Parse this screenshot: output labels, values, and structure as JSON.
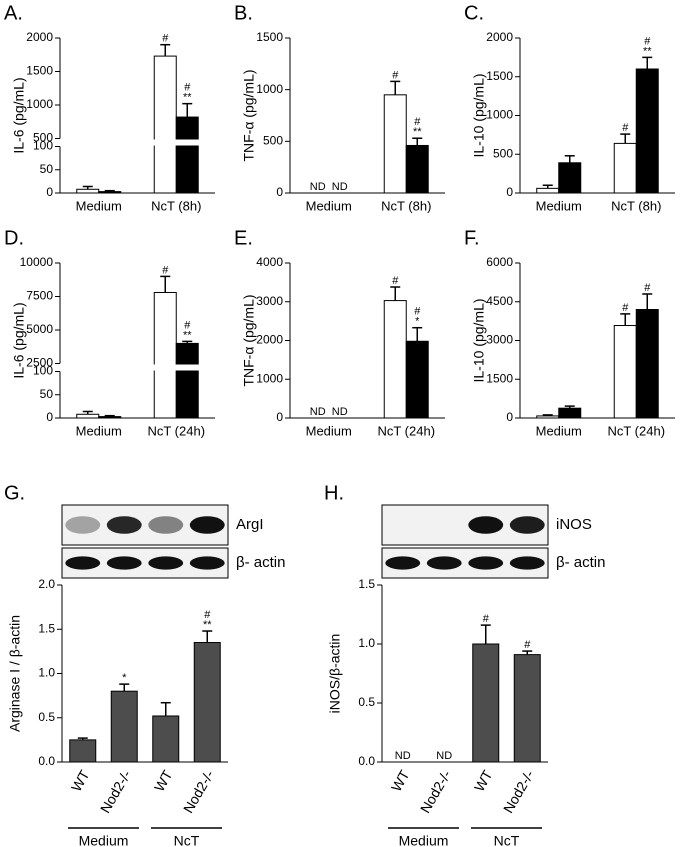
{
  "chart_data": [
    {
      "type": "bar",
      "title": "A.",
      "y_label": "IL-6 (pg/mL)",
      "categories": [
        "Medium",
        "NcT (8h)"
      ],
      "series": [
        {
          "color": "#ffffff",
          "values": [
            8,
            1730
          ],
          "errors": [
            6,
            170
          ],
          "annotations": [
            null,
            [
              "#"
            ]
          ]
        },
        {
          "color": "#000000",
          "values": [
            3,
            820
          ],
          "errors": [
            2,
            200
          ],
          "annotations": [
            null,
            [
              "#",
              "**"
            ]
          ]
        }
      ],
      "ylim": [
        0,
        2000
      ],
      "ybreak": [
        100,
        500
      ],
      "yticks": [
        0,
        50,
        100,
        500,
        1000,
        1500,
        2000
      ]
    },
    {
      "type": "bar",
      "title": "B.",
      "y_label": "TNF-α (pg/mL)",
      "categories": [
        "Medium",
        "NcT (8h)"
      ],
      "series": [
        {
          "color": "#ffffff",
          "values": [
            null,
            950
          ],
          "errors": [
            null,
            130
          ],
          "annotations": [
            [
              "ND"
            ],
            [
              "#"
            ]
          ]
        },
        {
          "color": "#000000",
          "values": [
            null,
            460
          ],
          "errors": [
            null,
            70
          ],
          "annotations": [
            [
              "ND"
            ],
            [
              "#",
              "**"
            ]
          ]
        }
      ],
      "ylim": [
        0,
        1500
      ],
      "yticks": [
        0,
        500,
        1000,
        1500
      ]
    },
    {
      "type": "bar",
      "title": "C.",
      "y_label": "IL-10 (pg/mL)",
      "categories": [
        "Medium",
        "NcT (8h)"
      ],
      "series": [
        {
          "color": "#ffffff",
          "values": [
            60,
            640
          ],
          "errors": [
            40,
            120
          ],
          "annotations": [
            null,
            [
              "#"
            ]
          ]
        },
        {
          "color": "#000000",
          "values": [
            390,
            1600
          ],
          "errors": [
            90,
            150
          ],
          "annotations": [
            null,
            [
              "#",
              "**"
            ]
          ]
        }
      ],
      "ylim": [
        0,
        2000
      ],
      "yticks": [
        0,
        500,
        1000,
        1500,
        2000
      ]
    },
    {
      "type": "bar",
      "title": "D.",
      "y_label": "IL-6 (pg/mL)",
      "categories": [
        "Medium",
        "NcT (24h)"
      ],
      "series": [
        {
          "color": "#ffffff",
          "values": [
            8,
            7800
          ],
          "errors": [
            6,
            1200
          ],
          "annotations": [
            null,
            [
              "#"
            ]
          ]
        },
        {
          "color": "#000000",
          "values": [
            3,
            4000
          ],
          "errors": [
            2,
            150
          ],
          "annotations": [
            null,
            [
              "#",
              "**"
            ]
          ]
        }
      ],
      "ylim": [
        0,
        10000
      ],
      "ybreak": [
        100,
        2500
      ],
      "yticks": [
        0,
        50,
        100,
        2500,
        5000,
        7500,
        10000
      ]
    },
    {
      "type": "bar",
      "title": "E.",
      "y_label": "TNF-α (pg/mL)",
      "categories": [
        "Medium",
        "NcT (24h)"
      ],
      "series": [
        {
          "color": "#ffffff",
          "values": [
            null,
            3030
          ],
          "errors": [
            null,
            350
          ],
          "annotations": [
            [
              "ND"
            ],
            [
              "#"
            ]
          ]
        },
        {
          "color": "#000000",
          "values": [
            null,
            1980
          ],
          "errors": [
            null,
            350
          ],
          "annotations": [
            [
              "ND"
            ],
            [
              "#",
              "*"
            ]
          ]
        }
      ],
      "ylim": [
        0,
        4000
      ],
      "yticks": [
        0,
        1000,
        2000,
        3000,
        4000
      ]
    },
    {
      "type": "bar",
      "title": "F.",
      "y_label": "IL-10 (pg/mL)",
      "categories": [
        "Medium",
        "NcT (24h)"
      ],
      "series": [
        {
          "color": "#ffffff",
          "values": [
            80,
            3580
          ],
          "errors": [
            40,
            450
          ],
          "annotations": [
            null,
            [
              "#"
            ]
          ]
        },
        {
          "color": "#000000",
          "values": [
            380,
            4200
          ],
          "errors": [
            80,
            600
          ],
          "annotations": [
            null,
            [
              "#"
            ]
          ]
        }
      ],
      "ylim": [
        0,
        6000
      ],
      "yticks": [
        0,
        1500,
        3000,
        4500,
        6000
      ]
    },
    {
      "type": "bar",
      "title": "G.",
      "y_label": "Arginase I / β-actin",
      "blot_labels": [
        "ArgI",
        "β- actin"
      ],
      "categories": [
        "WT",
        "Nod2-/-",
        "WT",
        "Nod2-/-"
      ],
      "groups": [
        "Medium",
        "NcT"
      ],
      "series": [
        {
          "color": "#4d4d4d",
          "values": [
            0.25,
            0.8,
            0.52,
            1.35
          ],
          "errors": [
            0.02,
            0.08,
            0.15,
            0.13
          ],
          "annotations": [
            null,
            [
              "*"
            ],
            null,
            [
              "#",
              "**"
            ]
          ]
        }
      ],
      "ylim": [
        0,
        2.0
      ],
      "yticks": [
        {
          "value": 0,
          "label": "0.0"
        },
        0.5,
        {
          "value": 1,
          "label": "1.0"
        },
        1.5,
        {
          "value": 2,
          "label": "2.0"
        }
      ]
    },
    {
      "type": "bar",
      "title": "H.",
      "y_label": "iNOS/β-actin",
      "blot_labels": [
        "iNOS",
        "β- actin"
      ],
      "categories": [
        "WT",
        "Nod2-/-",
        "WT",
        "Nod2-/-"
      ],
      "groups": [
        "Medium",
        "NcT"
      ],
      "series": [
        {
          "color": "#4d4d4d",
          "values": [
            null,
            null,
            1.0,
            0.91
          ],
          "errors": [
            null,
            null,
            0.16,
            0.03
          ],
          "annotations": [
            [
              "ND"
            ],
            [
              "ND"
            ],
            [
              "#"
            ],
            [
              "#"
            ]
          ]
        }
      ],
      "ylim": [
        0,
        1.5
      ],
      "yticks": [
        {
          "value": 0,
          "label": "0.0"
        },
        0.5,
        {
          "value": 1,
          "label": "1.0"
        },
        1.5
      ]
    }
  ]
}
